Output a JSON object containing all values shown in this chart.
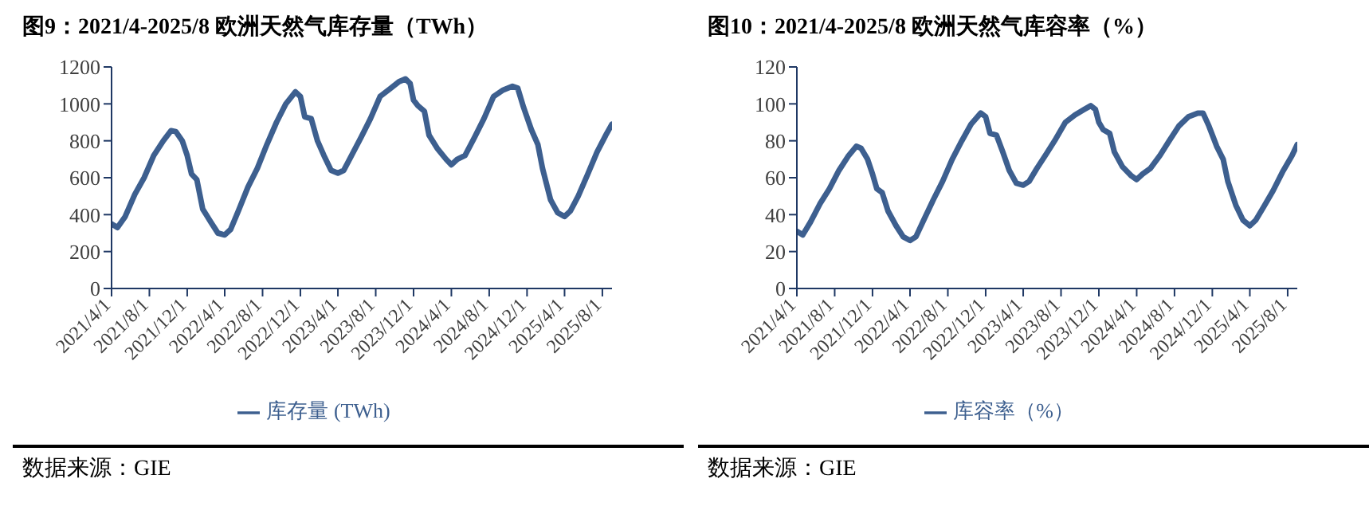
{
  "chart_data": [
    {
      "type": "line",
      "title": "图9：2021/4-2025/8 欧洲天然气库存量（TWh）",
      "annotations": [
        "数据来源：GIE"
      ],
      "legend": "bottom",
      "marker": "none",
      "line_style": "solid",
      "grid": false,
      "x": [
        "2021-04-01",
        "2021-04-20",
        "2021-05-15",
        "2021-06-15",
        "2021-07-15",
        "2021-08-15",
        "2021-09-15",
        "2021-10-10",
        "2021-10-25",
        "2021-11-15",
        "2021-12-01",
        "2021-12-15",
        "2022-01-01",
        "2022-01-20",
        "2022-02-15",
        "2022-03-10",
        "2022-04-01",
        "2022-04-20",
        "2022-05-15",
        "2022-06-15",
        "2022-07-15",
        "2022-08-15",
        "2022-09-15",
        "2022-10-15",
        "2022-11-15",
        "2022-12-01",
        "2022-12-15",
        "2023-01-05",
        "2023-01-25",
        "2023-02-15",
        "2023-03-10",
        "2023-04-01",
        "2023-04-20",
        "2023-05-15",
        "2023-06-15",
        "2023-07-15",
        "2023-08-15",
        "2023-09-15",
        "2023-10-15",
        "2023-11-05",
        "2023-11-20",
        "2023-12-01",
        "2023-12-15",
        "2024-01-05",
        "2024-01-20",
        "2024-02-15",
        "2024-03-15",
        "2024-04-01",
        "2024-04-20",
        "2024-05-15",
        "2024-06-15",
        "2024-07-15",
        "2024-08-15",
        "2024-09-15",
        "2024-10-15",
        "2024-11-01",
        "2024-11-20",
        "2024-12-15",
        "2025-01-05",
        "2025-01-20",
        "2025-02-15",
        "2025-03-10",
        "2025-04-01",
        "2025-04-20",
        "2025-05-15",
        "2025-06-15",
        "2025-07-15",
        "2025-08-15",
        "2025-09-01"
      ],
      "series": [
        {
          "name": "库存量 (TWh)",
          "color": "#3d5f8f",
          "values": [
            350,
            330,
            390,
            510,
            600,
            720,
            800,
            855,
            850,
            800,
            720,
            620,
            590,
            430,
            360,
            300,
            290,
            320,
            420,
            550,
            650,
            780,
            900,
            1000,
            1065,
            1040,
            930,
            920,
            800,
            720,
            640,
            625,
            640,
            720,
            820,
            920,
            1040,
            1080,
            1120,
            1135,
            1110,
            1020,
            990,
            960,
            830,
            760,
            700,
            670,
            700,
            720,
            820,
            920,
            1040,
            1075,
            1095,
            1085,
            980,
            860,
            780,
            650,
            480,
            410,
            390,
            420,
            500,
            620,
            740,
            840,
            890
          ]
        }
      ],
      "xlim": [
        "2021-04-01",
        "2025-09-01"
      ],
      "xticks": [
        {
          "value": "2021-04-01",
          "label": "2021/4/1"
        },
        {
          "value": "2021-08-01",
          "label": "2021/8/1"
        },
        {
          "value": "2021-12-01",
          "label": "2021/12/1"
        },
        {
          "value": "2022-04-01",
          "label": "2022/4/1"
        },
        {
          "value": "2022-08-01",
          "label": "2022/8/1"
        },
        {
          "value": "2022-12-01",
          "label": "2022/12/1"
        },
        {
          "value": "2023-04-01",
          "label": "2023/4/1"
        },
        {
          "value": "2023-08-01",
          "label": "2023/8/1"
        },
        {
          "value": "2023-12-01",
          "label": "2023/12/1"
        },
        {
          "value": "2024-04-01",
          "label": "2024/4/1"
        },
        {
          "value": "2024-08-01",
          "label": "2024/8/1"
        },
        {
          "value": "2024-12-01",
          "label": "2024/12/1"
        },
        {
          "value": "2025-04-01",
          "label": "2025/4/1"
        },
        {
          "value": "2025-08-01",
          "label": "2025/8/1"
        }
      ],
      "ylim": [
        0,
        1200
      ],
      "yticks": [
        0,
        200,
        400,
        600,
        800,
        1000,
        1200
      ]
    },
    {
      "type": "line",
      "title": "图10：2021/4-2025/8 欧洲天然气库容率（%）",
      "annotations": [
        "数据来源：GIE"
      ],
      "legend": "bottom",
      "marker": "none",
      "line_style": "solid",
      "grid": false,
      "x": [
        "2021-04-01",
        "2021-04-20",
        "2021-05-15",
        "2021-06-15",
        "2021-07-15",
        "2021-08-15",
        "2021-09-15",
        "2021-10-10",
        "2021-10-25",
        "2021-11-15",
        "2021-12-01",
        "2021-12-15",
        "2022-01-01",
        "2022-01-20",
        "2022-02-15",
        "2022-03-10",
        "2022-04-01",
        "2022-04-20",
        "2022-05-15",
        "2022-06-15",
        "2022-07-15",
        "2022-08-15",
        "2022-09-15",
        "2022-10-15",
        "2022-11-15",
        "2022-12-01",
        "2022-12-15",
        "2023-01-05",
        "2023-01-25",
        "2023-02-15",
        "2023-03-10",
        "2023-04-01",
        "2023-04-20",
        "2023-05-15",
        "2023-06-15",
        "2023-07-15",
        "2023-08-15",
        "2023-09-15",
        "2023-10-15",
        "2023-11-05",
        "2023-11-20",
        "2023-12-01",
        "2023-12-15",
        "2024-01-05",
        "2024-01-20",
        "2024-02-15",
        "2024-03-15",
        "2024-04-01",
        "2024-04-20",
        "2024-05-15",
        "2024-06-15",
        "2024-07-15",
        "2024-08-15",
        "2024-09-15",
        "2024-10-15",
        "2024-11-01",
        "2024-11-20",
        "2024-12-15",
        "2025-01-05",
        "2025-01-20",
        "2025-02-15",
        "2025-03-10",
        "2025-04-01",
        "2025-04-20",
        "2025-05-15",
        "2025-06-15",
        "2025-07-15",
        "2025-08-15",
        "2025-09-01"
      ],
      "series": [
        {
          "name": "库容率（%）",
          "color": "#3d5f8f",
          "values": [
            31,
            29,
            36,
            46,
            54,
            64,
            72,
            77,
            76,
            70,
            62,
            54,
            52,
            42,
            34,
            28,
            26,
            28,
            37,
            48,
            58,
            70,
            80,
            89,
            95,
            93,
            84,
            83,
            74,
            64,
            57,
            56,
            58,
            65,
            73,
            81,
            90,
            94,
            97,
            99,
            97,
            90,
            86,
            84,
            74,
            66,
            61,
            59,
            62,
            65,
            72,
            80,
            88,
            93,
            95,
            95,
            88,
            77,
            70,
            58,
            45,
            37,
            34,
            37,
            44,
            53,
            63,
            72,
            78
          ]
        }
      ],
      "xlim": [
        "2021-04-01",
        "2025-09-01"
      ],
      "xticks": [
        {
          "value": "2021-04-01",
          "label": "2021/4/1"
        },
        {
          "value": "2021-08-01",
          "label": "2021/8/1"
        },
        {
          "value": "2021-12-01",
          "label": "2021/12/1"
        },
        {
          "value": "2022-04-01",
          "label": "2022/4/1"
        },
        {
          "value": "2022-08-01",
          "label": "2022/8/1"
        },
        {
          "value": "2022-12-01",
          "label": "2022/12/1"
        },
        {
          "value": "2023-04-01",
          "label": "2023/4/1"
        },
        {
          "value": "2023-08-01",
          "label": "2023/8/1"
        },
        {
          "value": "2023-12-01",
          "label": "2023/12/1"
        },
        {
          "value": "2024-04-01",
          "label": "2024/4/1"
        },
        {
          "value": "2024-08-01",
          "label": "2024/8/1"
        },
        {
          "value": "2024-12-01",
          "label": "2024/12/1"
        },
        {
          "value": "2025-04-01",
          "label": "2025/4/1"
        },
        {
          "value": "2025-08-01",
          "label": "2025/8/1"
        }
      ],
      "ylim": [
        0,
        120
      ],
      "yticks": [
        0,
        20,
        40,
        60,
        80,
        100,
        120
      ]
    }
  ]
}
